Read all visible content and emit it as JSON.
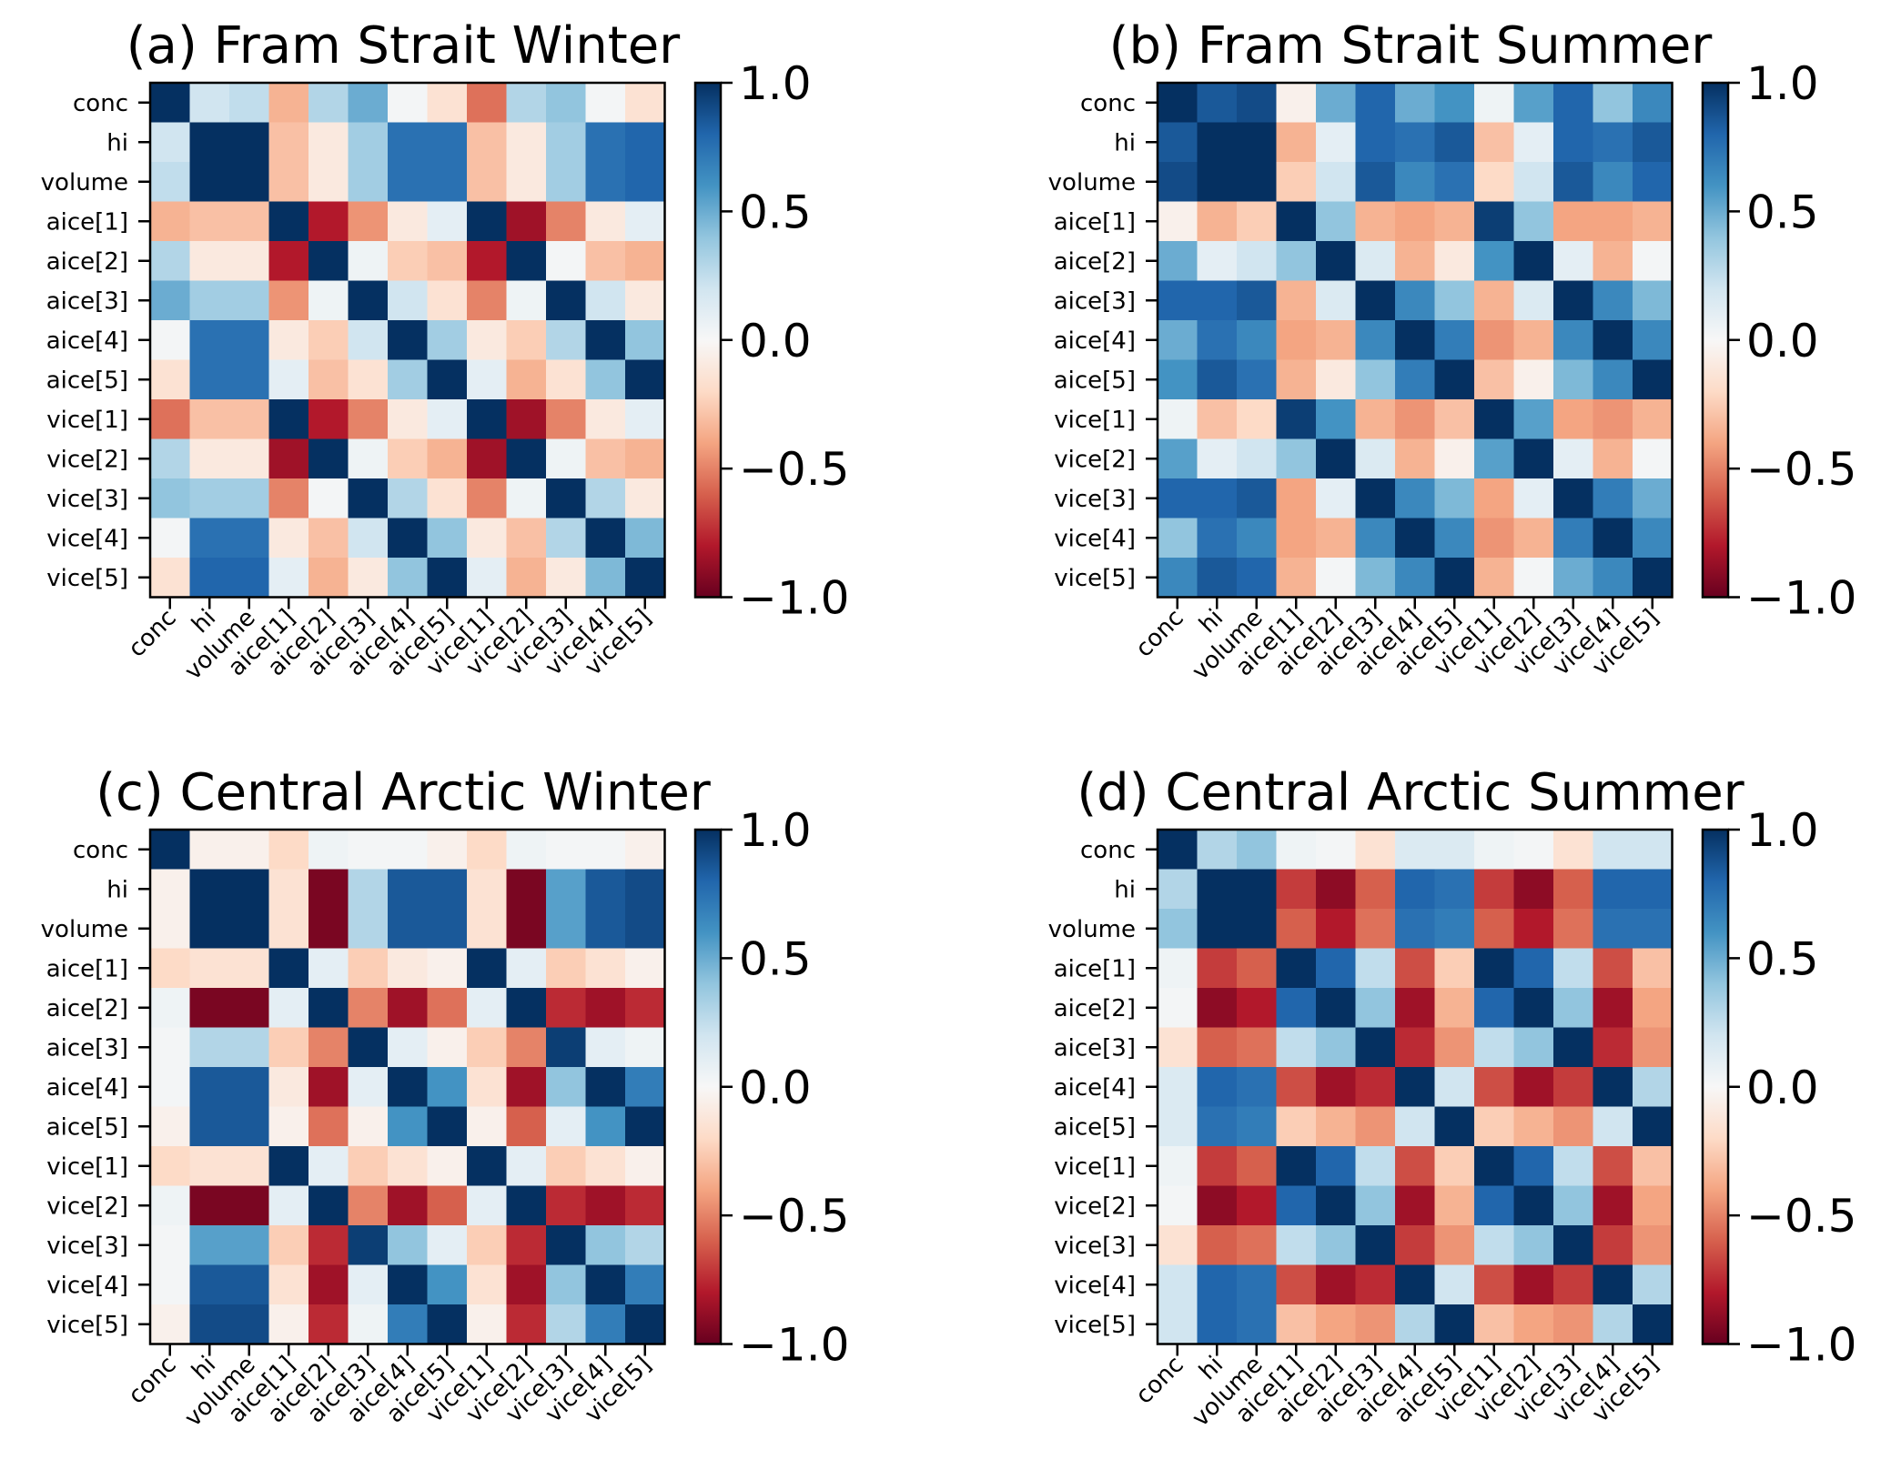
{
  "colorbar": {
    "ticks": [
      "1.0",
      "0.5",
      "0.0",
      "−0.5",
      "−1.0"
    ],
    "tick_values": [
      1.0,
      0.5,
      0.0,
      -0.5,
      -1.0
    ],
    "colormap": "RdBu",
    "colormap_stops": [
      "#67001f",
      "#b2182b",
      "#d6604d",
      "#f4a582",
      "#fddbc7",
      "#f7f7f7",
      "#d1e5f0",
      "#92c5de",
      "#4393c3",
      "#2166ac",
      "#053061"
    ]
  },
  "chart_data": [
    {
      "type": "heatmap",
      "title": "(a) Fram Strait Winter",
      "labels": [
        "conc",
        "hi",
        "volume",
        "aice[1]",
        "aice[2]",
        "aice[3]",
        "aice[4]",
        "aice[5]",
        "vice[1]",
        "vice[2]",
        "vice[3]",
        "vice[4]",
        "vice[5]"
      ],
      "vlim": [
        -1,
        1
      ],
      "matrix": [
        [
          1,
          0.2,
          0.25,
          -0.35,
          0.3,
          0.5,
          0.02,
          -0.15,
          -0.55,
          0.3,
          0.4,
          0.02,
          -0.15
        ],
        [
          0.2,
          1,
          1,
          -0.3,
          -0.1,
          0.35,
          0.75,
          0.75,
          -0.3,
          -0.1,
          0.35,
          0.75,
          0.8
        ],
        [
          0.25,
          1,
          1,
          -0.3,
          -0.1,
          0.35,
          0.75,
          0.75,
          -0.3,
          -0.1,
          0.35,
          0.75,
          0.8
        ],
        [
          -0.35,
          -0.3,
          -0.3,
          1,
          -0.8,
          -0.45,
          -0.1,
          0.1,
          1,
          -0.85,
          -0.5,
          -0.1,
          0.1
        ],
        [
          0.3,
          -0.1,
          -0.1,
          -0.8,
          1,
          0.05,
          -0.25,
          -0.3,
          -0.8,
          1,
          0.02,
          -0.3,
          -0.35
        ],
        [
          0.5,
          0.35,
          0.35,
          -0.45,
          0.05,
          1,
          0.2,
          -0.15,
          -0.5,
          0.05,
          1,
          0.2,
          -0.1
        ],
        [
          0.02,
          0.75,
          0.75,
          -0.1,
          -0.25,
          0.2,
          1,
          0.35,
          -0.1,
          -0.25,
          0.3,
          1,
          0.4
        ],
        [
          -0.15,
          0.75,
          0.75,
          0.1,
          -0.3,
          -0.15,
          0.35,
          1,
          0.1,
          -0.35,
          -0.15,
          0.4,
          1
        ],
        [
          -0.55,
          -0.3,
          -0.3,
          1,
          -0.8,
          -0.5,
          -0.1,
          0.1,
          1,
          -0.85,
          -0.5,
          -0.1,
          0.1
        ],
        [
          0.3,
          -0.1,
          -0.1,
          -0.85,
          1,
          0.05,
          -0.25,
          -0.35,
          -0.85,
          1,
          0.05,
          -0.3,
          -0.35
        ],
        [
          0.4,
          0.35,
          0.35,
          -0.5,
          0.02,
          1,
          0.3,
          -0.15,
          -0.5,
          0.05,
          1,
          0.3,
          -0.1
        ],
        [
          0.02,
          0.75,
          0.75,
          -0.1,
          -0.3,
          0.2,
          1,
          0.4,
          -0.1,
          -0.3,
          0.3,
          1,
          0.45
        ],
        [
          -0.15,
          0.8,
          0.8,
          0.1,
          -0.35,
          -0.1,
          0.4,
          1,
          0.1,
          -0.35,
          -0.1,
          0.45,
          1
        ]
      ]
    },
    {
      "type": "heatmap",
      "title": "(b) Fram Strait Summer",
      "labels": [
        "conc",
        "hi",
        "volume",
        "aice[1]",
        "aice[2]",
        "aice[3]",
        "aice[4]",
        "aice[5]",
        "vice[1]",
        "vice[2]",
        "vice[3]",
        "vice[4]",
        "vice[5]"
      ],
      "vlim": [
        -1,
        1
      ],
      "matrix": [
        [
          1,
          0.85,
          0.9,
          -0.05,
          0.5,
          0.8,
          0.5,
          0.6,
          0.05,
          0.55,
          0.8,
          0.4,
          0.65
        ],
        [
          0.85,
          1,
          1,
          -0.35,
          0.1,
          0.8,
          0.75,
          0.85,
          -0.3,
          0.1,
          0.8,
          0.75,
          0.85
        ],
        [
          0.9,
          1,
          1,
          -0.25,
          0.2,
          0.85,
          0.65,
          0.75,
          -0.2,
          0.2,
          0.85,
          0.65,
          0.8
        ],
        [
          -0.05,
          -0.35,
          -0.25,
          1,
          0.4,
          -0.35,
          -0.4,
          -0.35,
          0.95,
          0.4,
          -0.4,
          -0.4,
          -0.35
        ],
        [
          0.5,
          0.1,
          0.2,
          0.4,
          1,
          0.15,
          -0.35,
          -0.1,
          0.6,
          1,
          0.1,
          -0.35,
          0.02
        ],
        [
          0.8,
          0.8,
          0.85,
          -0.35,
          0.15,
          1,
          0.65,
          0.4,
          -0.35,
          0.15,
          1,
          0.65,
          0.45
        ],
        [
          0.5,
          0.75,
          0.65,
          -0.4,
          -0.35,
          0.65,
          1,
          0.7,
          -0.45,
          -0.35,
          0.65,
          1,
          0.65
        ],
        [
          0.6,
          0.85,
          0.75,
          -0.35,
          -0.1,
          0.4,
          0.7,
          1,
          -0.3,
          -0.05,
          0.45,
          0.65,
          1
        ],
        [
          0.05,
          -0.3,
          -0.2,
          0.95,
          0.6,
          -0.35,
          -0.45,
          -0.3,
          1,
          0.55,
          -0.4,
          -0.45,
          -0.35
        ],
        [
          0.55,
          0.1,
          0.2,
          0.4,
          1,
          0.15,
          -0.35,
          -0.05,
          0.55,
          1,
          0.1,
          -0.35,
          0.02
        ],
        [
          0.8,
          0.8,
          0.85,
          -0.4,
          0.1,
          1,
          0.65,
          0.45,
          -0.4,
          0.1,
          1,
          0.7,
          0.5
        ],
        [
          0.4,
          0.75,
          0.65,
          -0.4,
          -0.35,
          0.65,
          1,
          0.65,
          -0.45,
          -0.35,
          0.7,
          1,
          0.65
        ],
        [
          0.65,
          0.85,
          0.8,
          -0.35,
          0.02,
          0.45,
          0.65,
          1,
          -0.35,
          0.02,
          0.5,
          0.65,
          1
        ]
      ]
    },
    {
      "type": "heatmap",
      "title": "(c) Central Arctic Winter",
      "labels": [
        "conc",
        "hi",
        "volume",
        "aice[1]",
        "aice[2]",
        "aice[3]",
        "aice[4]",
        "aice[5]",
        "vice[1]",
        "vice[2]",
        "vice[3]",
        "vice[4]",
        "vice[5]"
      ],
      "vlim": [
        -1,
        1
      ],
      "matrix": [
        [
          1,
          -0.05,
          -0.05,
          -0.2,
          0.05,
          0.02,
          0.02,
          -0.05,
          -0.2,
          0.05,
          0.02,
          0.02,
          -0.05
        ],
        [
          -0.05,
          1,
          1,
          -0.15,
          -0.95,
          0.3,
          0.85,
          0.85,
          -0.15,
          -0.95,
          0.55,
          0.85,
          0.9
        ],
        [
          -0.05,
          1,
          1,
          -0.15,
          -0.95,
          0.3,
          0.85,
          0.85,
          -0.15,
          -0.95,
          0.55,
          0.85,
          0.9
        ],
        [
          -0.2,
          -0.15,
          -0.15,
          1,
          0.1,
          -0.25,
          -0.1,
          -0.05,
          1,
          0.1,
          -0.25,
          -0.15,
          -0.05
        ],
        [
          0.05,
          -0.95,
          -0.95,
          0.1,
          1,
          -0.5,
          -0.85,
          -0.55,
          0.1,
          1,
          -0.75,
          -0.85,
          -0.75
        ],
        [
          0.02,
          0.3,
          0.3,
          -0.25,
          -0.5,
          1,
          0.1,
          -0.05,
          -0.25,
          -0.5,
          0.95,
          0.1,
          0.05
        ],
        [
          0.02,
          0.85,
          0.85,
          -0.1,
          -0.85,
          0.1,
          1,
          0.6,
          -0.15,
          -0.85,
          0.4,
          1,
          0.7
        ],
        [
          -0.05,
          0.85,
          0.85,
          -0.05,
          -0.55,
          -0.05,
          0.6,
          1,
          -0.05,
          -0.6,
          0.1,
          0.6,
          1
        ],
        [
          -0.2,
          -0.15,
          -0.15,
          1,
          0.1,
          -0.25,
          -0.15,
          -0.05,
          1,
          0.1,
          -0.25,
          -0.15,
          -0.05
        ],
        [
          0.05,
          -0.95,
          -0.95,
          0.1,
          1,
          -0.5,
          -0.85,
          -0.6,
          0.1,
          1,
          -0.75,
          -0.85,
          -0.75
        ],
        [
          0.02,
          0.55,
          0.55,
          -0.25,
          -0.75,
          0.95,
          0.4,
          0.1,
          -0.25,
          -0.75,
          1,
          0.4,
          0.3
        ],
        [
          0.02,
          0.85,
          0.85,
          -0.15,
          -0.85,
          0.1,
          1,
          0.6,
          -0.15,
          -0.85,
          0.4,
          1,
          0.7
        ],
        [
          -0.05,
          0.9,
          0.9,
          -0.05,
          -0.75,
          0.05,
          0.7,
          1,
          -0.05,
          -0.75,
          0.3,
          0.7,
          1
        ]
      ]
    },
    {
      "type": "heatmap",
      "title": "(d) Central Arctic Summer",
      "labels": [
        "conc",
        "hi",
        "volume",
        "aice[1]",
        "aice[2]",
        "aice[3]",
        "aice[4]",
        "aice[5]",
        "vice[1]",
        "vice[2]",
        "vice[3]",
        "vice[4]",
        "vice[5]"
      ],
      "vlim": [
        -1,
        1
      ],
      "matrix": [
        [
          1,
          0.3,
          0.4,
          0.05,
          0.02,
          -0.15,
          0.15,
          0.15,
          0.05,
          0.02,
          -0.15,
          0.2,
          0.2
        ],
        [
          0.3,
          1,
          1,
          -0.7,
          -0.9,
          -0.6,
          0.8,
          0.75,
          -0.7,
          -0.9,
          -0.6,
          0.8,
          0.8
        ],
        [
          0.4,
          1,
          1,
          -0.6,
          -0.8,
          -0.55,
          0.75,
          0.7,
          -0.6,
          -0.8,
          -0.55,
          0.75,
          0.75
        ],
        [
          0.05,
          -0.7,
          -0.6,
          1,
          0.8,
          0.25,
          -0.65,
          -0.25,
          1,
          0.8,
          0.25,
          -0.65,
          -0.3
        ],
        [
          0.02,
          -0.9,
          -0.8,
          0.8,
          1,
          0.4,
          -0.85,
          -0.35,
          0.8,
          1,
          0.4,
          -0.85,
          -0.4
        ],
        [
          -0.15,
          -0.6,
          -0.55,
          0.25,
          0.4,
          1,
          -0.75,
          -0.45,
          0.25,
          0.4,
          1,
          -0.75,
          -0.45
        ],
        [
          0.15,
          0.8,
          0.75,
          -0.65,
          -0.85,
          -0.75,
          1,
          0.2,
          -0.65,
          -0.85,
          -0.7,
          1,
          0.3
        ],
        [
          0.15,
          0.75,
          0.7,
          -0.25,
          -0.35,
          -0.45,
          0.2,
          1,
          -0.25,
          -0.35,
          -0.45,
          0.2,
          1
        ],
        [
          0.05,
          -0.7,
          -0.6,
          1,
          0.8,
          0.25,
          -0.65,
          -0.25,
          1,
          0.8,
          0.25,
          -0.65,
          -0.3
        ],
        [
          0.02,
          -0.9,
          -0.8,
          0.8,
          1,
          0.4,
          -0.85,
          -0.35,
          0.8,
          1,
          0.4,
          -0.85,
          -0.4
        ],
        [
          -0.15,
          -0.6,
          -0.55,
          0.25,
          0.4,
          1,
          -0.7,
          -0.45,
          0.25,
          0.4,
          1,
          -0.7,
          -0.45
        ],
        [
          0.2,
          0.8,
          0.75,
          -0.65,
          -0.85,
          -0.75,
          1,
          0.2,
          -0.65,
          -0.85,
          -0.7,
          1,
          0.3
        ],
        [
          0.2,
          0.8,
          0.75,
          -0.3,
          -0.4,
          -0.45,
          0.3,
          1,
          -0.3,
          -0.4,
          -0.45,
          0.3,
          1
        ]
      ]
    }
  ]
}
